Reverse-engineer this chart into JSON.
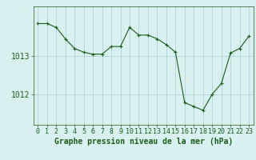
{
  "x": [
    0,
    1,
    2,
    3,
    4,
    5,
    6,
    7,
    8,
    9,
    10,
    11,
    12,
    13,
    14,
    15,
    16,
    17,
    18,
    19,
    20,
    21,
    22,
    23
  ],
  "y": [
    1013.85,
    1013.85,
    1013.75,
    1013.45,
    1013.2,
    1013.1,
    1013.05,
    1013.05,
    1013.25,
    1013.25,
    1013.75,
    1013.55,
    1013.55,
    1013.45,
    1013.3,
    1013.1,
    1011.78,
    1011.68,
    1011.58,
    1012.0,
    1012.28,
    1013.08,
    1013.2,
    1013.52
  ],
  "line_color": "#1a5c1a",
  "marker": "+",
  "marker_size": 3,
  "bg_color": "#d8f0f0",
  "grid_color": "#aacece",
  "ylabel_ticks": [
    1012,
    1013
  ],
  "xlabel": "Graphe pression niveau de la mer (hPa)",
  "xlabel_fontsize": 7,
  "tick_fontsize": 6,
  "ylim": [
    1011.2,
    1014.3
  ],
  "xlim": [
    -0.5,
    23.5
  ]
}
